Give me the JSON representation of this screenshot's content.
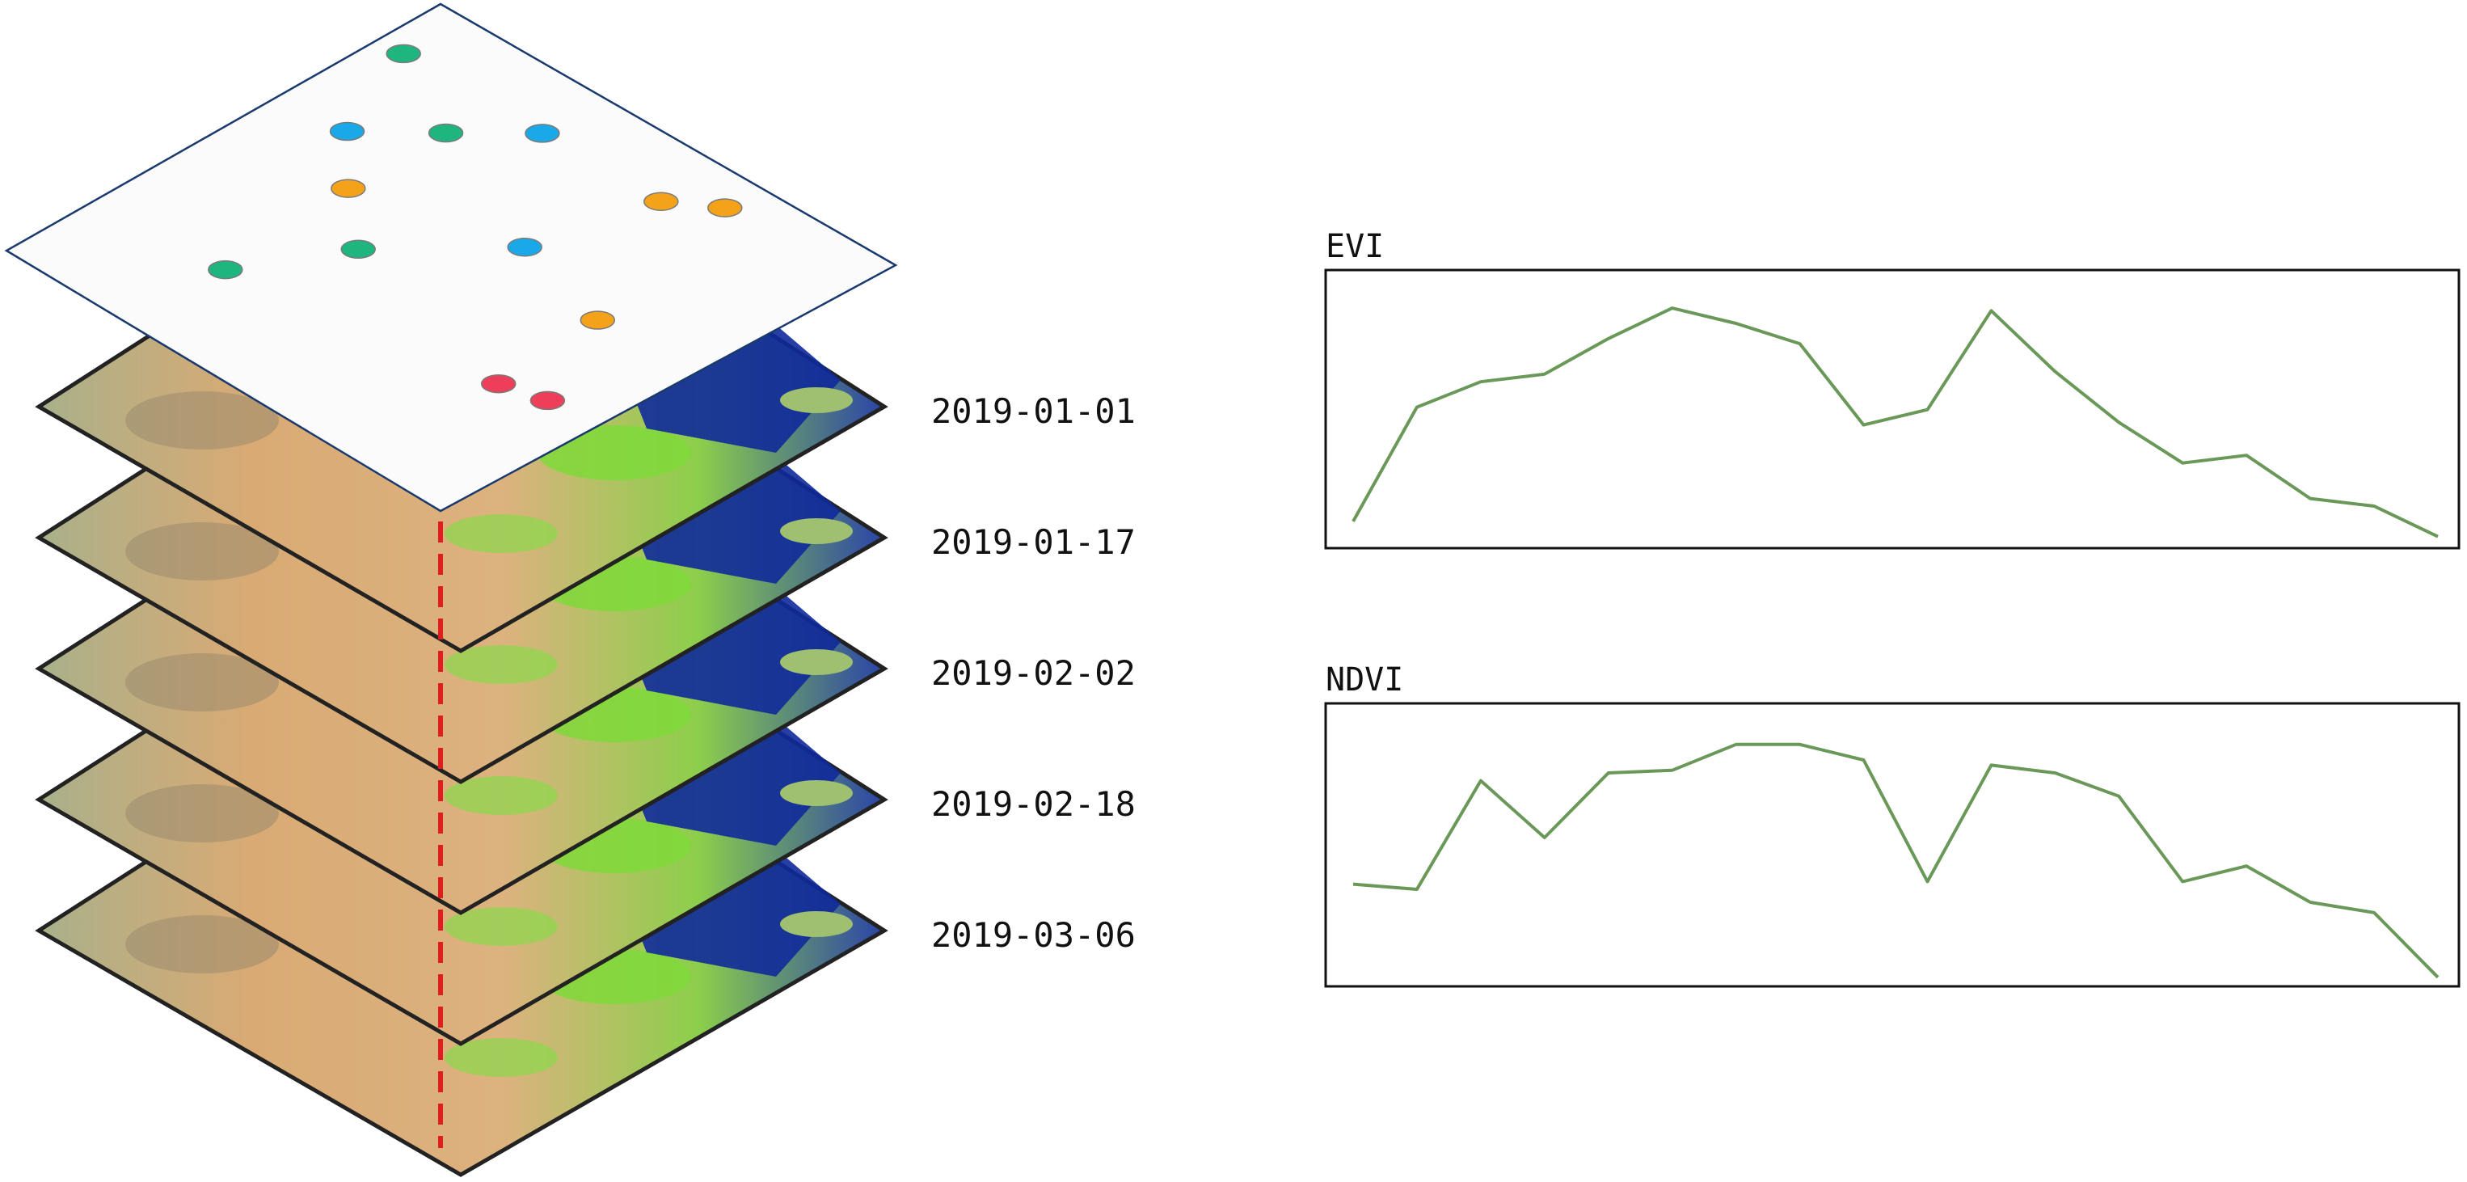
{
  "layers": [
    {
      "date": "2019-01-01"
    },
    {
      "date": "2019-01-17"
    },
    {
      "date": "2019-02-02"
    },
    {
      "date": "2019-02-18"
    },
    {
      "date": "2019-03-06"
    }
  ],
  "sample_points": [
    {
      "class": "green",
      "u": 0.055,
      "v": 0.143
    },
    {
      "class": "blue",
      "u": 0.143,
      "v": 0.365
    },
    {
      "class": "blue",
      "u": 0.36,
      "v": 0.143
    },
    {
      "class": "green",
      "u": 0.254,
      "v": 0.254
    },
    {
      "class": "orange",
      "u": 0.254,
      "v": 0.479
    },
    {
      "class": "green",
      "u": 0.276,
      "v": 0.785
    },
    {
      "class": "green",
      "u": 0.382,
      "v": 0.59
    },
    {
      "class": "blue",
      "u": 0.56,
      "v": 0.393
    },
    {
      "class": "orange",
      "u": 0.621,
      "v": 0.143
    },
    {
      "class": "orange",
      "u": 0.703,
      "v": 0.082
    },
    {
      "class": "orange",
      "u": 0.78,
      "v": 0.456
    },
    {
      "class": "red",
      "u": 0.794,
      "v": 0.699
    },
    {
      "class": "red",
      "u": 0.88,
      "v": 0.676
    }
  ],
  "point_colors": {
    "green": "#1fb57e",
    "blue": "#1aa9e8",
    "orange": "#f5a21b",
    "red": "#ee3f5a"
  },
  "charts": {
    "evi": {
      "title": "EVI",
      "values": [
        0.08,
        0.53,
        0.63,
        0.66,
        0.8,
        0.92,
        0.86,
        0.78,
        0.46,
        0.52,
        0.91,
        0.67,
        0.47,
        0.31,
        0.34,
        0.17,
        0.14,
        0.02
      ]
    },
    "ndvi": {
      "title": "NDVI",
      "values": [
        0.37,
        0.35,
        0.77,
        0.55,
        0.8,
        0.81,
        0.91,
        0.91,
        0.85,
        0.38,
        0.83,
        0.8,
        0.71,
        0.38,
        0.44,
        0.3,
        0.26,
        0.01
      ]
    }
  },
  "colors": {
    "line": "#6a9858",
    "dashed": "#dd1f1f",
    "sample_grid_edge": "#1a3a6e"
  }
}
